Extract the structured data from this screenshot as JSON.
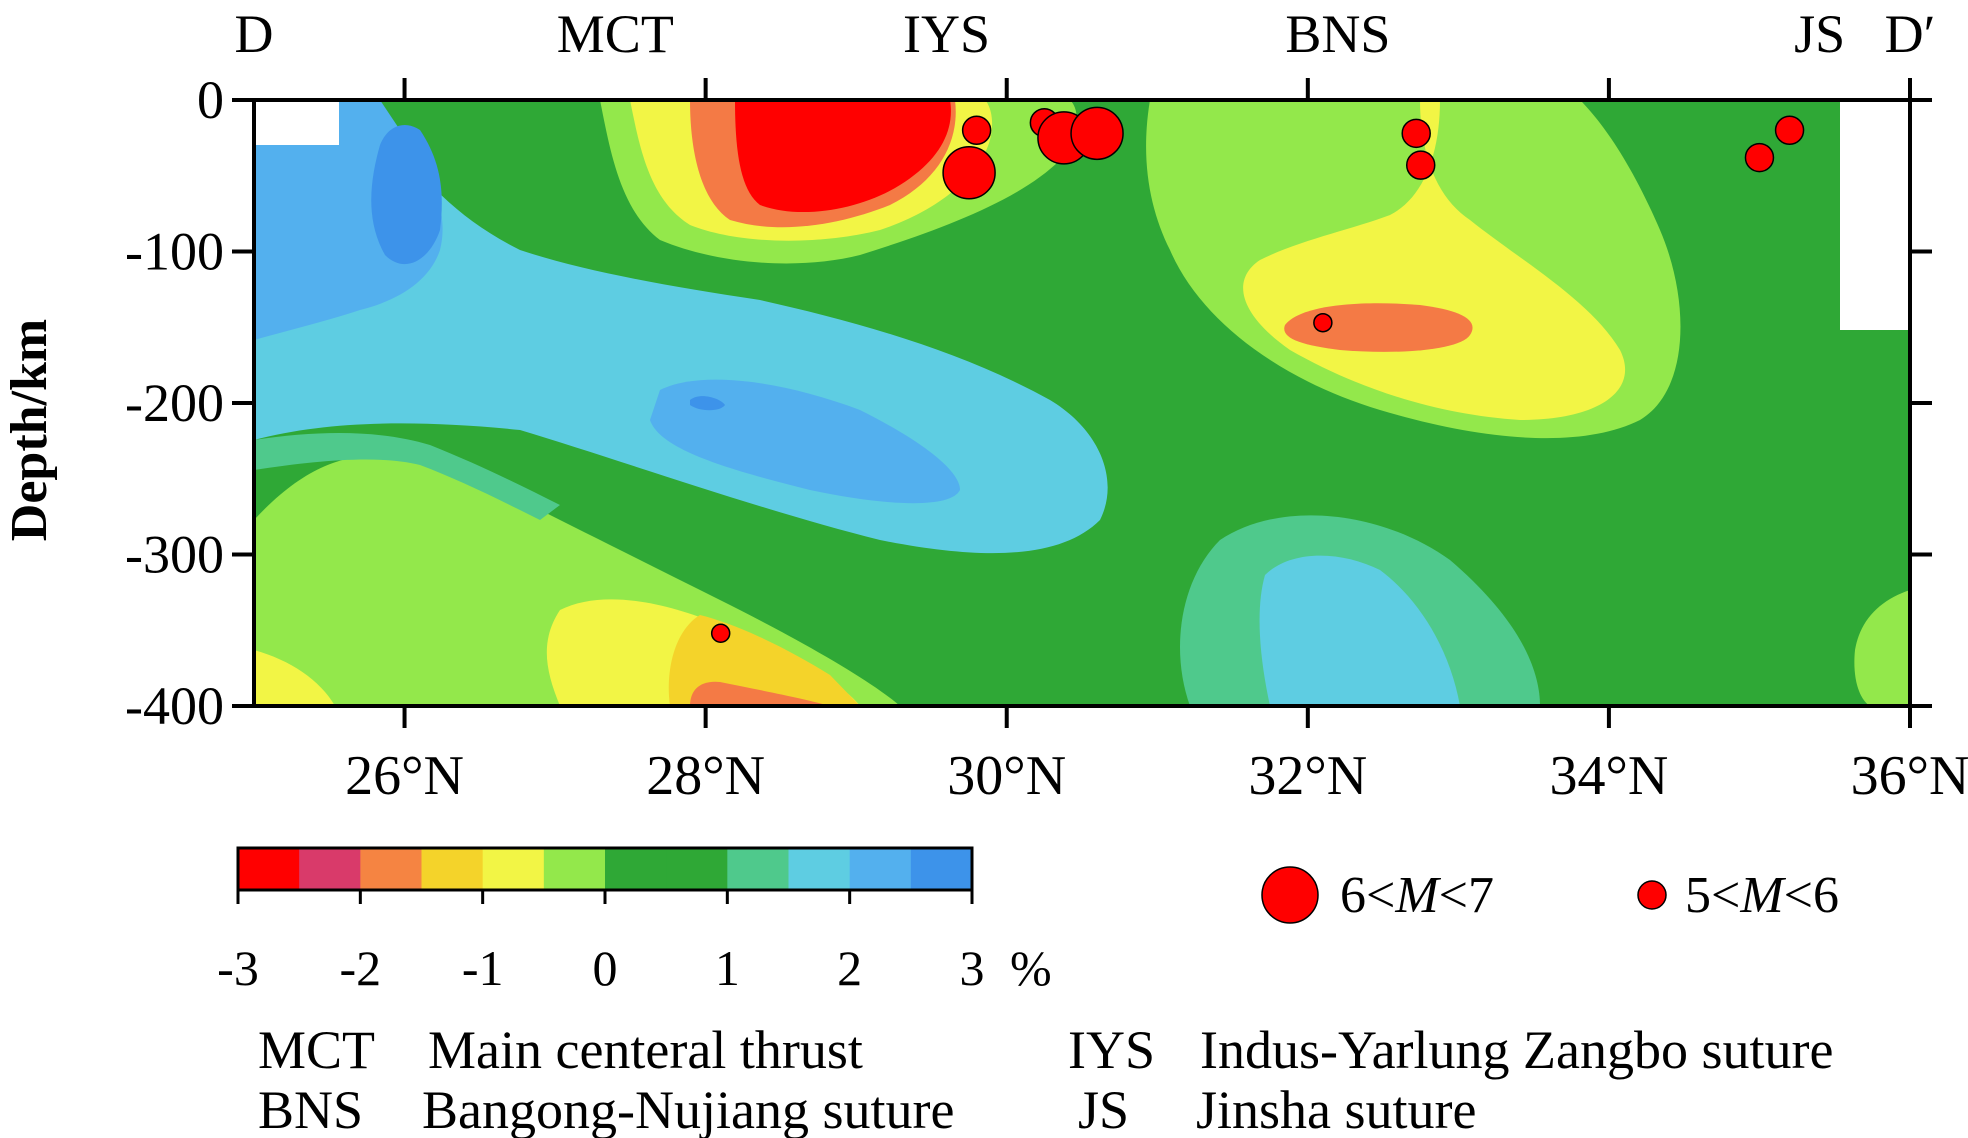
{
  "chart_data": {
    "type": "heatmap",
    "title": "",
    "profile_start_label": "D",
    "profile_end_label": "D′",
    "xlabel": "",
    "ylabel": "Depth/km",
    "xlim": [
      25,
      36
    ],
    "ylim": [
      -400,
      0
    ],
    "x_ticks": [
      26,
      28,
      30,
      32,
      34,
      36
    ],
    "x_tick_labels": [
      "26°N",
      "28°N",
      "30°N",
      "32°N",
      "34°N",
      "36°N"
    ],
    "y_ticks": [
      0,
      -100,
      -200,
      -300,
      -400
    ],
    "y_tick_labels": [
      "0",
      "-100",
      "-200",
      "-300",
      "-400"
    ],
    "top_markers": [
      {
        "label": "MCT",
        "lat": 27.4
      },
      {
        "label": "IYS",
        "lat": 29.6
      },
      {
        "label": "BNS",
        "lat": 32.2
      },
      {
        "label": "JS",
        "lat": 35.4
      }
    ],
    "earthquakes": [
      {
        "lat": 29.8,
        "depth": -20,
        "class": "5<M<6"
      },
      {
        "lat": 29.75,
        "depth": -48,
        "class": "6<M<7"
      },
      {
        "lat": 30.25,
        "depth": -15,
        "class": "5<M<6"
      },
      {
        "lat": 30.38,
        "depth": -25,
        "class": "6<M<7"
      },
      {
        "lat": 30.6,
        "depth": -22,
        "class": "6<M<7"
      },
      {
        "lat": 32.72,
        "depth": -22,
        "class": "5<M<6"
      },
      {
        "lat": 32.75,
        "depth": -43,
        "class": "5<M<6"
      },
      {
        "lat": 32.1,
        "depth": -147,
        "class": "small"
      },
      {
        "lat": 35.0,
        "depth": -38,
        "class": "5<M<6"
      },
      {
        "lat": 35.2,
        "depth": -20,
        "class": "5<M<6"
      },
      {
        "lat": 28.1,
        "depth": -352,
        "class": "small"
      }
    ],
    "colorbar": {
      "tick_labels": [
        "-3",
        "-2",
        "-1",
        "0",
        "1",
        "2",
        "3"
      ],
      "unit": "%",
      "colors": [
        "#ff0000",
        "#d93a6a",
        "#f58442",
        "#f4d32a",
        "#f2f545",
        "#93e84b",
        "#2fa836",
        "#2fa836",
        "#4fc98c",
        "#5ecde2",
        "#53b0ee",
        "#3d93ea"
      ]
    },
    "legend": {
      "large_label_pre": "6<",
      "large_label_M": "M",
      "large_label_post": "<7",
      "small_label_pre": "5<",
      "small_label_M": "M",
      "small_label_post": "<6"
    },
    "abbreviations": [
      {
        "abbr": "MCT",
        "name": "Main centeral thrust"
      },
      {
        "abbr": "IYS",
        "name": "Indus-Yarlung Zangbo suture"
      },
      {
        "abbr": "BNS",
        "name": "Bangong-Nujiang suture"
      },
      {
        "abbr": "JS",
        "name": "Jinsha suture"
      }
    ]
  },
  "colors": {
    "red": "#ff0000",
    "dark_orange": "#f47a45",
    "yellow": "#f2f545",
    "light_green": "#93e84b",
    "green": "#2fa836",
    "teal": "#4fc98c",
    "light_blue": "#5ecde2",
    "blue": "#53b0ee",
    "dark_blue": "#3d93ea"
  }
}
